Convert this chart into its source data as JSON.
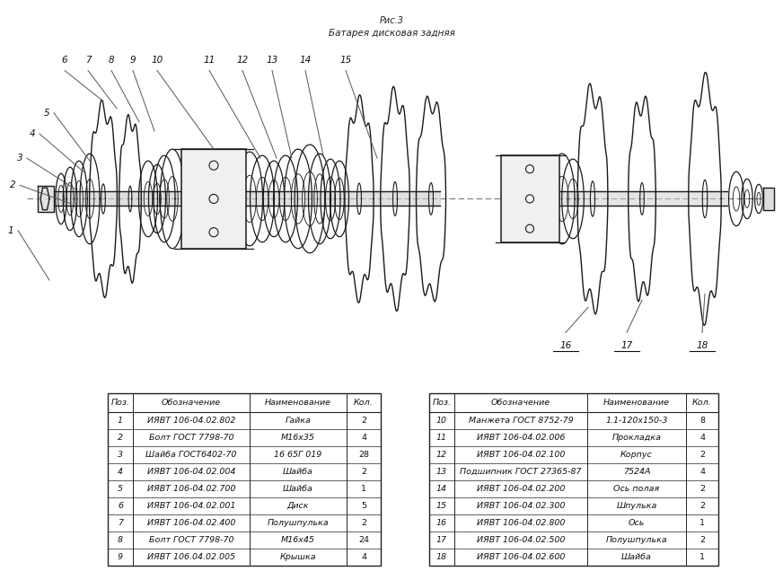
{
  "title_line1": "Рис.3",
  "title_line2": "Батарея дисковая задняя",
  "bg_color": "#ffffff",
  "table1_headers": [
    "Поз.",
    "Обозначение",
    "Наименование",
    "Кол."
  ],
  "table1_rows": [
    [
      "1",
      "ИЯВТ 106-04.02.802",
      "Гайка",
      "2"
    ],
    [
      "2",
      "Болт ГОСТ 7798-70",
      "М16х35",
      "4"
    ],
    [
      "3",
      "Шайба ГОСТ6402-70",
      "16 65Г 019",
      "28"
    ],
    [
      "4",
      "ИЯВТ 106-04.02.004",
      "Шайба",
      "2"
    ],
    [
      "5",
      "ИЯВТ 106-04.02.700",
      "Шайба",
      "1"
    ],
    [
      "6",
      "ИЯВТ 106-04.02.001",
      "Диск",
      "5"
    ],
    [
      "7",
      "ИЯВТ 106-04.02.400",
      "Полушпулька",
      "2"
    ],
    [
      "8",
      "Болт ГОСТ 7798-70",
      "М16х45",
      "24"
    ],
    [
      "9",
      "ИЯВТ 106.04.02.005",
      "Крышка",
      "4"
    ]
  ],
  "table2_headers": [
    "Поз.",
    "Обозначение",
    "Наименование",
    "Кол."
  ],
  "table2_rows": [
    [
      "10",
      "Манжета ГОСТ 8752-79",
      "1.1-120х150-3",
      "8"
    ],
    [
      "11",
      "ИЯВТ 106-04.02.006",
      "Прокладка",
      "4"
    ],
    [
      "12",
      "ИЯВТ 106-04.02.100",
      "Корпус",
      "2"
    ],
    [
      "13",
      "Подшипник ГОСТ 27365-87",
      "7524А",
      "4"
    ],
    [
      "14",
      "ИЯВТ 106-04.02.200",
      "Ось полая",
      "2"
    ],
    [
      "15",
      "ИЯВТ 106-04.02.300",
      "Шпулька",
      "2"
    ],
    [
      "16",
      "ИЯВТ 106-04.02.800",
      "Ось",
      "1"
    ],
    [
      "17",
      "ИЯВТ 106-04.02.500",
      "Полушпулька",
      "2"
    ],
    [
      "18",
      "ИЯВТ 106-04.02.600",
      "Шайба",
      "1"
    ]
  ]
}
